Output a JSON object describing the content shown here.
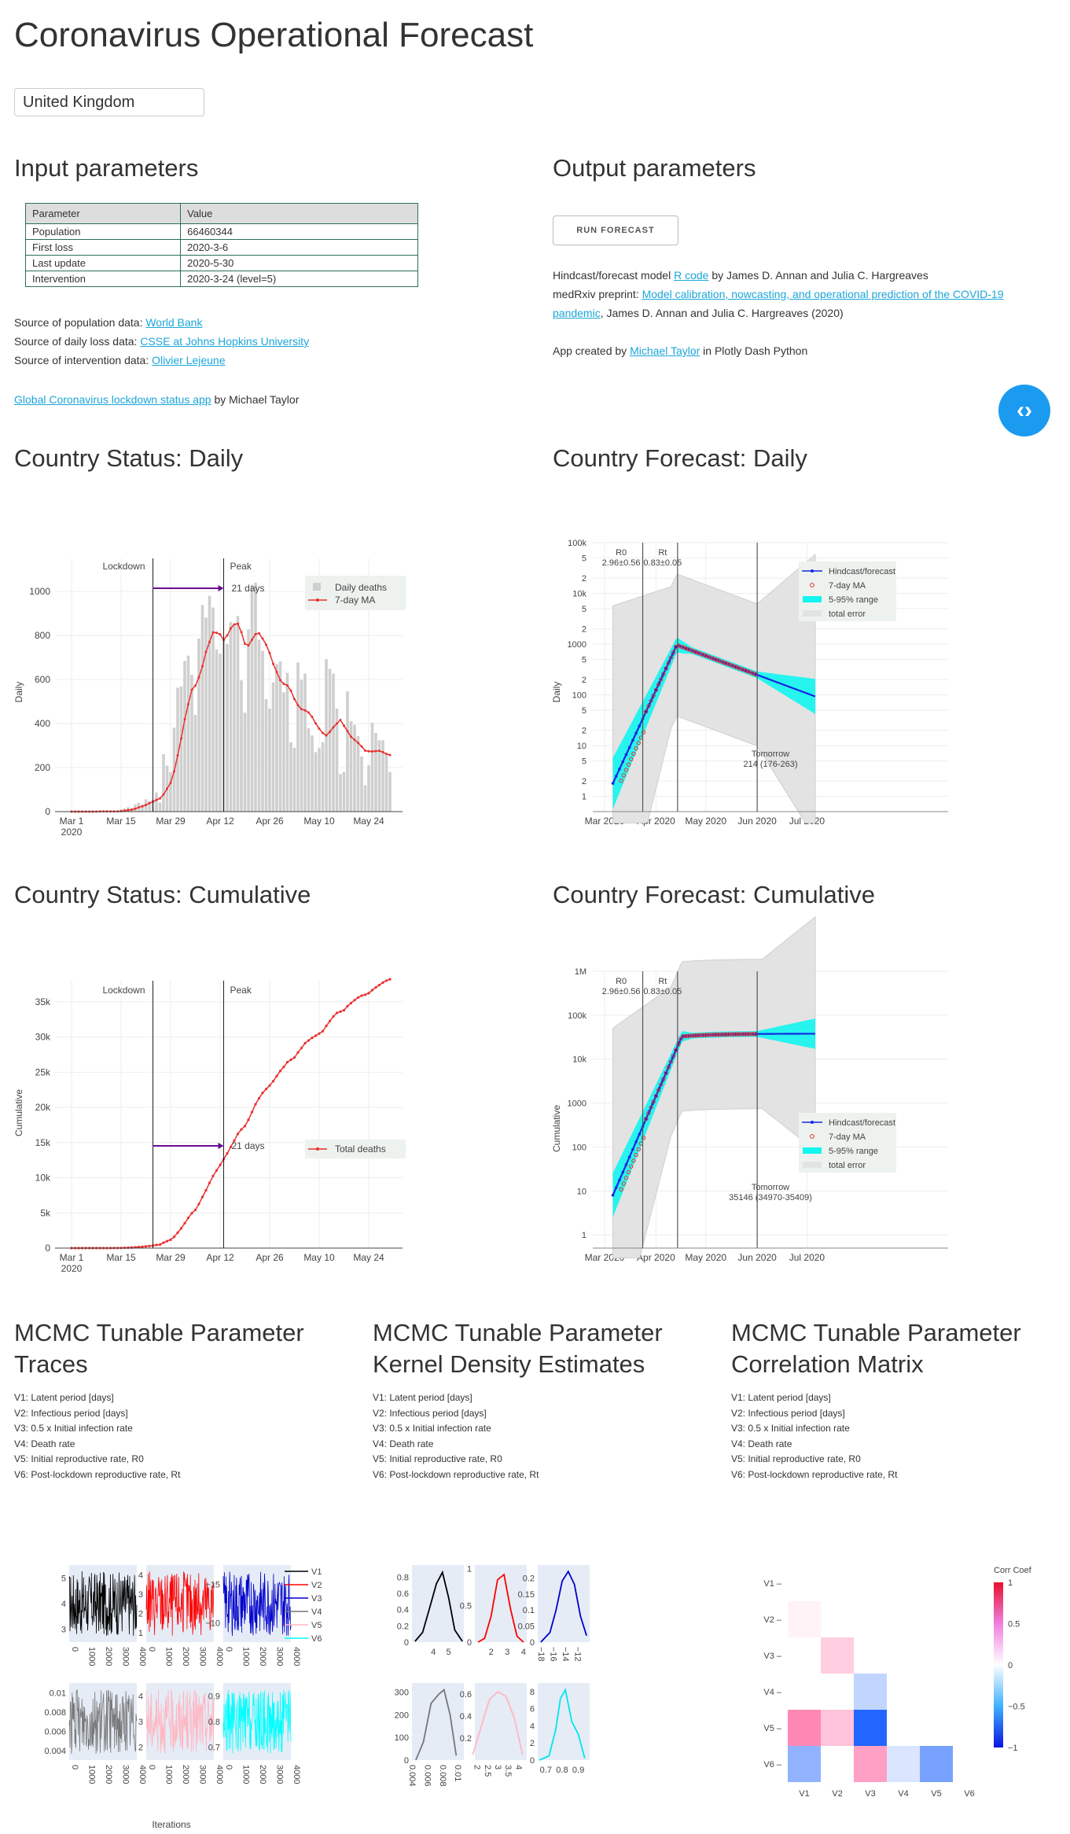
{
  "title": "Coronavirus Operational Forecast",
  "country": "United Kingdom",
  "input_heading": "Input parameters",
  "output_heading": "Output parameters",
  "table": {
    "headers": [
      "Parameter",
      "Value"
    ],
    "rows": [
      [
        "Population",
        "66460344"
      ],
      [
        "First loss",
        "2020-3-6"
      ],
      [
        "Last update",
        "2020-5-30"
      ],
      [
        "Intervention",
        "2020-3-24 (level=5)"
      ]
    ]
  },
  "sources": {
    "population_prefix": "Source of population data: ",
    "population_link": "World Bank",
    "loss_prefix": "Source of daily loss data: ",
    "loss_link": "CSSE at Johns Hopkins University",
    "intervention_prefix": "Source of intervention data: ",
    "intervention_link": "Olivier Lejeune",
    "lockdown_app_link": "Global Coronavirus lockdown status app",
    "lockdown_app_suffix": " by Michael Taylor"
  },
  "output": {
    "run_button": "RUN FORECAST",
    "model_prefix": "Hindcast/forecast model ",
    "model_link": "R code",
    "model_suffix": " by James D. Annan and Julia C. Hargreaves",
    "medrxiv_prefix": "medRxiv preprint: ",
    "medrxiv_link_1": "Model calibration, nowcasting, and operational prediction of the COVID-19",
    "medrxiv_link_2": "pandemic",
    "medrxiv_suffix": ", James D. Annan and Julia C. Hargreaves (2020)",
    "app_prefix": "App created by ",
    "app_link": "Michael Taylor",
    "app_suffix": " in Plotly Dash Python"
  },
  "headings": {
    "status_daily": "Country Status: Daily",
    "forecast_daily": "Country Forecast: Daily",
    "status_cumulative": "Country Status: Cumulative",
    "forecast_cumulative": "Country Forecast: Cumulative",
    "traces_1": "MCMC Tunable Parameter",
    "traces_2": "Traces",
    "kde_1": "MCMC Tunable Parameter",
    "kde_2": "Kernel Density Estimates",
    "corr_1": "MCMC Tunable Parameter",
    "corr_2": "Correlation Matrix"
  },
  "variables": [
    "V1: Latent period [days]",
    "V2: Infectious period [days]",
    "V3: 0.5 x Initial infection rate",
    "V4: Death rate",
    "V5: Initial reproductive rate, R0",
    "V6: Post-lockdown reproductive rate, Rt"
  ],
  "chart_data": [
    {
      "id": "status_daily",
      "type": "bar",
      "ylabel": "Daily",
      "x_ticks": [
        "Mar 1\n2020",
        "Mar 15",
        "Mar 29",
        "Apr 12",
        "Apr 26",
        "May 10",
        "May 24"
      ],
      "y_ticks": [
        "0",
        "200",
        "400",
        "600",
        "800",
        "1000"
      ],
      "ylim": [
        0,
        1150
      ],
      "start_date": "2020-03-01",
      "annotations": {
        "lockdown": "Lockdown",
        "peak": "Peak",
        "gap": "21 days"
      },
      "legend": [
        "Daily deaths",
        "7-day MA"
      ],
      "daily_deaths": [
        0,
        0,
        0,
        0,
        0,
        1,
        0,
        1,
        1,
        2,
        0,
        1,
        2,
        1,
        10,
        14,
        20,
        16,
        33,
        40,
        33,
        56,
        48,
        54,
        87,
        41,
        260,
        209,
        180,
        381,
        563,
        569,
        684,
        708,
        621,
        439,
        786,
        938,
        881,
        980,
        927,
        737,
        717,
        778,
        761,
        861,
        847,
        888,
        596,
        449,
        828,
        1030,
        1040,
        780,
        730,
        510,
        468,
        587,
        670,
        682,
        542,
        630,
        315,
        290,
        677,
        598,
        627,
        380,
        346,
        270,
        288,
        315,
        693,
        648,
        627,
        468,
        170,
        180,
        546,
        411,
        394,
        343,
        250,
        120,
        210,
        404,
        357,
        324,
        324,
        256,
        180
      ],
      "ma7": [
        0,
        0,
        0,
        0,
        0,
        0,
        0,
        0,
        1,
        1,
        1,
        1,
        1,
        1,
        2,
        4,
        7,
        9,
        13,
        19,
        24,
        30,
        38,
        45,
        53,
        60,
        78,
        104,
        131,
        182,
        255,
        332,
        420,
        488,
        553,
        572,
        610,
        660,
        725,
        770,
        814,
        812,
        805,
        780,
        800,
        832,
        850,
        853,
        815,
        762,
        755,
        781,
        806,
        810,
        786,
        758,
        720,
        671,
        634,
        597,
        580,
        573,
        549,
        511,
        483,
        465,
        460,
        450,
        430,
        401,
        377,
        357,
        346,
        362,
        383,
        400,
        416,
        390,
        365,
        340,
        326,
        312,
        296,
        277,
        274,
        273,
        275,
        276,
        270,
        262,
        257
      ]
    },
    {
      "id": "forecast_daily",
      "type": "line",
      "ylabel": "Daily",
      "yscale": "log",
      "ylim": [
        0.5,
        100000
      ],
      "x_ticks": [
        "Mar 2020",
        "Apr 2020",
        "May 2020",
        "Jun 2020",
        "Jul 2020"
      ],
      "y_ticks": [
        "1",
        "2",
        "5",
        "10",
        "2",
        "5",
        "100",
        "2",
        "5",
        "1000",
        "2",
        "5",
        "10k",
        "2",
        "5",
        "100k"
      ],
      "annotations": {
        "r0_label": "R0",
        "r0_value": "2.96±0.56",
        "rt_label": "Rt",
        "rt_value": "0.83±0.05",
        "tomorrow_label": "Tomorrow",
        "tomorrow_value": "214 (176-263)"
      },
      "legend": [
        "Hindcast/forecast",
        "7-day MA",
        "5-95% range",
        "total error"
      ]
    },
    {
      "id": "status_cumulative",
      "type": "line",
      "ylabel": "Cumulative",
      "ylim": [
        0,
        38000
      ],
      "x_ticks": [
        "Mar 1\n2020",
        "Mar 15",
        "Mar 29",
        "Apr 12",
        "Apr 26",
        "May 10",
        "May 24"
      ],
      "y_ticks": [
        "0",
        "5k",
        "10k",
        "15k",
        "20k",
        "25k",
        "30k",
        "35k"
      ],
      "annotations": {
        "lockdown": "Lockdown",
        "peak": "Peak",
        "gap": "21 days"
      },
      "legend": [
        "Total deaths"
      ]
    },
    {
      "id": "forecast_cumulative",
      "type": "line",
      "ylabel": "Cumulative",
      "yscale": "log",
      "ylim": [
        0.5,
        1000000
      ],
      "x_ticks": [
        "Mar 2020",
        "Apr 2020",
        "May 2020",
        "Jun 2020",
        "Jul 2020"
      ],
      "y_ticks": [
        "1",
        "10",
        "100",
        "1000",
        "10k",
        "100k",
        "1M"
      ],
      "annotations": {
        "r0_label": "R0",
        "r0_value": "2.96±0.56",
        "rt_label": "Rt",
        "rt_value": "0.83±0.05",
        "tomorrow_label": "Tomorrow",
        "tomorrow_value": "35146 (34970-35409)"
      },
      "legend": [
        "Hindcast/forecast",
        "7-day MA",
        "5-95% range",
        "total error"
      ]
    },
    {
      "id": "mcmc_traces",
      "type": "line",
      "xlabel": "Iterations",
      "legend": [
        "V1",
        "V2",
        "V3",
        "V4",
        "V5",
        "V6"
      ],
      "colors": [
        "#000000",
        "#ff0000",
        "#0000cc",
        "#777777",
        "#ffb6c1",
        "#00ffff"
      ],
      "x_ticks": [
        "0",
        "1000",
        "2000",
        "3000",
        "4000"
      ],
      "panels": [
        {
          "name": "V1",
          "y_ticks": [
            "3",
            "4",
            "5"
          ],
          "ylim": [
            2.8,
            6.0
          ]
        },
        {
          "name": "V2",
          "y_ticks": [
            "1",
            "2",
            "3",
            "4"
          ],
          "ylim": [
            1,
            4
          ]
        },
        {
          "name": "V3",
          "y_ticks": [
            "−10",
            "−15"
          ],
          "ylim": [
            -18,
            -9
          ]
        },
        {
          "name": "V4",
          "y_ticks": [
            "0.004",
            "0.006",
            "0.008",
            "0.01"
          ],
          "ylim": [
            0.0035,
            0.011
          ]
        },
        {
          "name": "V5",
          "y_ticks": [
            "2",
            "3",
            "4"
          ],
          "ylim": [
            1.5,
            4
          ]
        },
        {
          "name": "V6",
          "y_ticks": [
            "0.7",
            "0.8",
            "0.9"
          ],
          "ylim": [
            0.66,
            0.96
          ]
        }
      ]
    },
    {
      "id": "mcmc_kde",
      "type": "line",
      "panels": [
        {
          "name": "V1",
          "color": "#000000",
          "x": [
            2.8,
            3.3,
            3.8,
            4.2,
            4.6,
            5.0,
            5.4,
            5.9
          ],
          "y": [
            0.01,
            0.12,
            0.45,
            0.72,
            0.86,
            0.55,
            0.15,
            0.01
          ],
          "x_ticks": [
            "4",
            "5"
          ],
          "y_ticks": [
            "0",
            "0.2",
            "0.4",
            "0.6",
            "0.8"
          ],
          "xlim": [
            2.6,
            6.0
          ],
          "ylim": [
            0,
            0.95
          ]
        },
        {
          "name": "V2",
          "color": "#ff0000",
          "x": [
            1.2,
            1.6,
            2.0,
            2.4,
            2.8,
            3.2,
            3.6,
            4.0
          ],
          "y": [
            0.0,
            0.05,
            0.35,
            0.85,
            0.92,
            0.45,
            0.08,
            0.0
          ],
          "x_ticks": [
            "2",
            "3",
            "4"
          ],
          "y_ticks": [
            "0",
            "0.5",
            "1"
          ],
          "xlim": [
            1.0,
            4.2
          ],
          "ylim": [
            0,
            1.05
          ]
        },
        {
          "name": "V3",
          "color": "#0000cc",
          "x": [
            -18,
            -16.5,
            -15.5,
            -14.5,
            -13.5,
            -12.5,
            -11.5,
            -10.5
          ],
          "y": [
            0.0,
            0.03,
            0.1,
            0.19,
            0.22,
            0.18,
            0.08,
            0.02
          ],
          "x_ticks": [
            "−18",
            "−16",
            "−14",
            "−12"
          ],
          "y_ticks": [
            "0",
            "0.05",
            "0.1",
            "0.15",
            "0.2"
          ],
          "xlim": [
            -18.5,
            -10
          ],
          "ylim": [
            0,
            0.24
          ]
        },
        {
          "name": "V4",
          "color": "#777777",
          "x": [
            0.0045,
            0.0055,
            0.0065,
            0.0075,
            0.0082,
            0.009,
            0.0098
          ],
          "y": [
            0,
            80,
            250,
            290,
            310,
            200,
            20
          ],
          "x_ticks": [
            "0.004",
            "0.006",
            "0.008",
            "0.01"
          ],
          "y_ticks": [
            "0",
            "100",
            "200",
            "300"
          ],
          "xlim": [
            0.004,
            0.0108
          ],
          "ylim": [
            0,
            340
          ]
        },
        {
          "name": "V5",
          "color": "#ffb6c1",
          "x": [
            1.8,
            2.2,
            2.6,
            3.0,
            3.4,
            3.8,
            4.2
          ],
          "y": [
            0.05,
            0.3,
            0.55,
            0.62,
            0.58,
            0.38,
            0.05
          ],
          "x_ticks": [
            "2",
            "2.5",
            "3",
            "3.5",
            "4"
          ],
          "y_ticks": [
            "0.2",
            "0.4",
            "0.6"
          ],
          "xlim": [
            1.9,
            4.4
          ],
          "ylim": [
            0,
            0.7
          ]
        },
        {
          "name": "V6",
          "color": "#00e5ee",
          "x": [
            0.66,
            0.72,
            0.76,
            0.79,
            0.82,
            0.86,
            0.9,
            0.94
          ],
          "y": [
            0,
            0.5,
            3.5,
            7.2,
            8.2,
            4.5,
            3.0,
            0.2
          ],
          "x_ticks": [
            "0.7",
            "0.8",
            "0.9"
          ],
          "y_ticks": [
            "0",
            "2",
            "4",
            "6",
            "8"
          ],
          "xlim": [
            0.65,
            0.97
          ],
          "ylim": [
            0,
            9
          ]
        }
      ]
    },
    {
      "id": "mcmc_corr",
      "type": "heatmap",
      "colorbar_title": "Corr Coef",
      "colorbar_ticks": [
        "1",
        "0.5",
        "0",
        "−0.5",
        "−1"
      ],
      "labels": [
        "V1",
        "V2",
        "V3",
        "V4",
        "V5",
        "V6"
      ],
      "values": [
        [
          null,
          null,
          null,
          null,
          null,
          null
        ],
        [
          0.05,
          null,
          null,
          null,
          null,
          null
        ],
        [
          0.0,
          0.2,
          null,
          null,
          null,
          null
        ],
        [
          0.0,
          0.0,
          -0.25,
          null,
          null,
          null
        ],
        [
          0.5,
          0.25,
          -0.9,
          0.0,
          null,
          null
        ],
        [
          -0.45,
          0.0,
          0.4,
          -0.15,
          -0.55,
          null
        ]
      ]
    }
  ]
}
